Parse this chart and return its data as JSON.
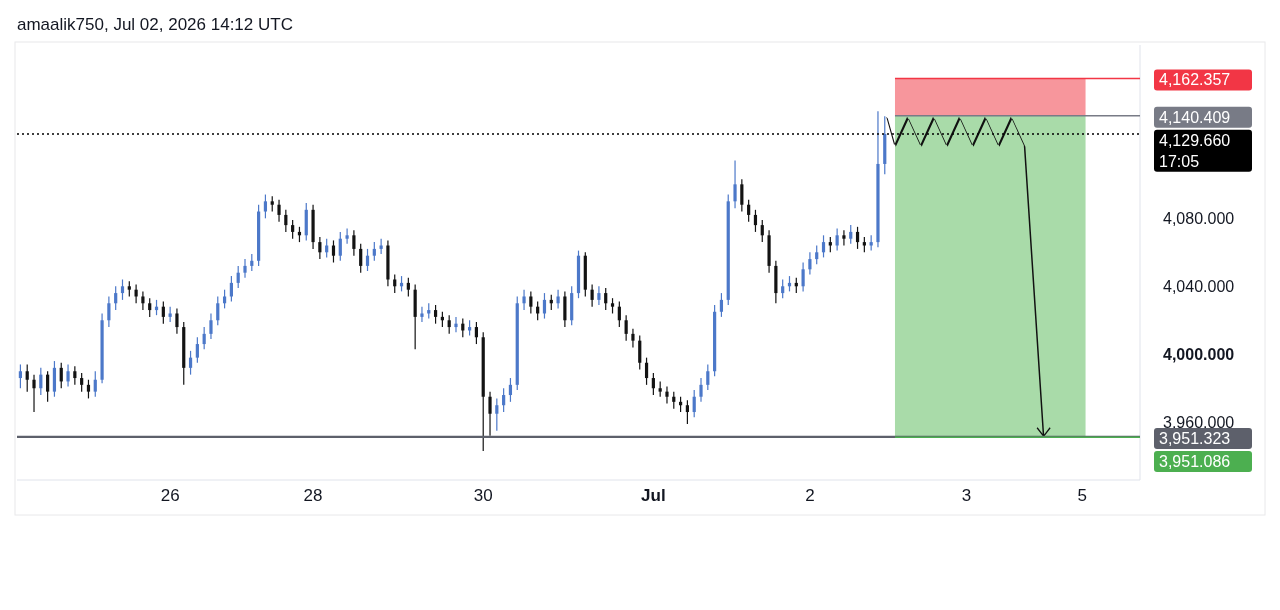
{
  "chart_data": {
    "type": "candlestick",
    "title": "amaalik750, Jul 02, 2026 14:12 UTC",
    "categories": [
      null,
      null,
      null,
      null,
      null,
      null,
      null,
      null,
      null,
      null,
      null,
      null,
      null,
      null,
      null,
      null,
      null,
      null,
      null,
      null,
      null,
      null,
      "26",
      null,
      null,
      null,
      null,
      null,
      null,
      null,
      null,
      null,
      null,
      null,
      null,
      null,
      null,
      null,
      null,
      null,
      null,
      null,
      null,
      "28",
      null,
      null,
      null,
      null,
      null,
      null,
      null,
      null,
      null,
      null,
      null,
      null,
      null,
      null,
      null,
      null,
      null,
      null,
      null,
      null,
      null,
      null,
      null,
      null,
      "30",
      null,
      null,
      null,
      null,
      null,
      null,
      null,
      null,
      null,
      null,
      null,
      null,
      null,
      null,
      null,
      null,
      null,
      null,
      null,
      null,
      null,
      null,
      null,
      null,
      "Jul",
      null,
      null,
      null,
      null,
      null,
      null,
      null,
      null,
      null,
      null,
      null,
      null,
      null,
      null,
      null,
      null,
      null,
      null,
      null,
      null,
      null,
      null,
      "2",
      null,
      null,
      null,
      null,
      null,
      null,
      null,
      null,
      null,
      null,
      null,
      null,
      null,
      null,
      null,
      null,
      null,
      null,
      null,
      null,
      null,
      null,
      "3",
      null,
      null,
      null,
      null,
      null,
      null,
      null,
      null,
      null,
      null,
      null,
      null,
      null,
      null,
      null,
      null,
      "5",
      null,
      null,
      null,
      null,
      null,
      null,
      null,
      null
    ],
    "ohlc": [
      [
        3986,
        3994,
        3980,
        3990
      ],
      [
        3990,
        3994,
        3978,
        3985
      ],
      [
        3985,
        3988,
        3966,
        3980
      ],
      [
        3980,
        3992,
        3976,
        3988
      ],
      [
        3988,
        3990,
        3972,
        3978
      ],
      [
        3978,
        3996,
        3975,
        3992
      ],
      [
        3992,
        3995,
        3980,
        3984
      ],
      [
        3984,
        3994,
        3981,
        3990
      ],
      [
        3990,
        3993,
        3982,
        3986
      ],
      [
        3986,
        3989,
        3978,
        3982
      ],
      [
        3982,
        3985,
        3974,
        3978
      ],
      [
        3978,
        3990,
        3975,
        3985
      ],
      [
        3985,
        4024,
        3983,
        4020
      ],
      [
        4020,
        4034,
        4016,
        4030
      ],
      [
        4030,
        4040,
        4026,
        4036
      ],
      [
        4036,
        4044,
        4032,
        4040
      ],
      [
        4040,
        4043,
        4034,
        4038
      ],
      [
        4038,
        4041,
        4030,
        4034
      ],
      [
        4034,
        4037,
        4026,
        4030
      ],
      [
        4030,
        4033,
        4022,
        4026
      ],
      [
        4026,
        4032,
        4023,
        4028
      ],
      [
        4028,
        4031,
        4018,
        4022
      ],
      [
        4022,
        4028,
        4019,
        4024
      ],
      [
        4024,
        4027,
        4012,
        4016
      ],
      [
        4016,
        4019,
        3982,
        3992
      ],
      [
        3992,
        4002,
        3988,
        3998
      ],
      [
        3998,
        4010,
        3995,
        4006
      ],
      [
        4006,
        4016,
        4003,
        4012
      ],
      [
        4012,
        4024,
        4009,
        4020
      ],
      [
        4020,
        4034,
        4017,
        4030
      ],
      [
        4030,
        4038,
        4027,
        4034
      ],
      [
        4034,
        4046,
        4031,
        4042
      ],
      [
        4042,
        4052,
        4039,
        4048
      ],
      [
        4048,
        4056,
        4045,
        4052
      ],
      [
        4052,
        4059,
        4049,
        4055
      ],
      [
        4055,
        4088,
        4052,
        4084
      ],
      [
        4084,
        4094,
        4080,
        4090
      ],
      [
        4090,
        4093,
        4084,
        4088
      ],
      [
        4088,
        4091,
        4078,
        4082
      ],
      [
        4082,
        4085,
        4072,
        4076
      ],
      [
        4076,
        4079,
        4068,
        4072
      ],
      [
        4072,
        4075,
        4066,
        4070
      ],
      [
        4070,
        4089,
        4067,
        4085
      ],
      [
        4085,
        4088,
        4062,
        4066
      ],
      [
        4066,
        4069,
        4056,
        4060
      ],
      [
        4060,
        4068,
        4057,
        4064
      ],
      [
        4064,
        4067,
        4054,
        4058
      ],
      [
        4058,
        4072,
        4055,
        4068
      ],
      [
        4068,
        4074,
        4065,
        4070
      ],
      [
        4070,
        4073,
        4058,
        4062
      ],
      [
        4062,
        4065,
        4048,
        4052
      ],
      [
        4052,
        4062,
        4049,
        4058
      ],
      [
        4058,
        4066,
        4055,
        4062
      ],
      [
        4062,
        4068,
        4059,
        4064
      ],
      [
        4064,
        4067,
        4040,
        4044
      ],
      [
        4044,
        4047,
        4036,
        4040
      ],
      [
        4040,
        4046,
        4037,
        4042
      ],
      [
        4042,
        4045,
        4034,
        4038
      ],
      [
        4038,
        4041,
        4003,
        4022
      ],
      [
        4022,
        4028,
        4019,
        4024
      ],
      [
        4024,
        4030,
        4021,
        4026
      ],
      [
        4026,
        4029,
        4018,
        4022
      ],
      [
        4022,
        4025,
        4016,
        4020
      ],
      [
        4020,
        4023,
        4012,
        4016
      ],
      [
        4016,
        4022,
        4013,
        4018
      ],
      [
        4018,
        4021,
        4010,
        4014
      ],
      [
        4014,
        4020,
        4011,
        4016
      ],
      [
        4016,
        4019,
        4006,
        4010
      ],
      [
        4010,
        4013,
        3943,
        3975
      ],
      [
        3975,
        3978,
        3952,
        3965
      ],
      [
        3965,
        3974,
        3955,
        3970
      ],
      [
        3970,
        3980,
        3966,
        3976
      ],
      [
        3976,
        3986,
        3972,
        3982
      ],
      [
        3982,
        4034,
        3979,
        4030
      ],
      [
        4030,
        4038,
        4026,
        4034
      ],
      [
        4034,
        4037,
        4024,
        4028
      ],
      [
        4028,
        4031,
        4020,
        4024
      ],
      [
        4024,
        4036,
        4021,
        4032
      ],
      [
        4032,
        4035,
        4026,
        4030
      ],
      [
        4030,
        4038,
        4027,
        4034
      ],
      [
        4034,
        4037,
        4016,
        4020
      ],
      [
        4020,
        4040,
        4017,
        4036
      ],
      [
        4036,
        4061,
        4033,
        4058
      ],
      [
        4058,
        4060,
        4034,
        4038
      ],
      [
        4038,
        4041,
        4028,
        4032
      ],
      [
        4032,
        4040,
        4029,
        4036
      ],
      [
        4036,
        4039,
        4026,
        4030
      ],
      [
        4030,
        4033,
        4024,
        4028
      ],
      [
        4028,
        4031,
        4016,
        4020
      ],
      [
        4020,
        4023,
        4008,
        4012
      ],
      [
        4012,
        4015,
        4004,
        4008
      ],
      [
        4008,
        4011,
        3991,
        3995
      ],
      [
        3995,
        3998,
        3982,
        3986
      ],
      [
        3986,
        3989,
        3976,
        3980
      ],
      [
        3980,
        3984,
        3975,
        3978
      ],
      [
        3978,
        3981,
        3971,
        3975
      ],
      [
        3975,
        3978,
        3968,
        3972
      ],
      [
        3972,
        3975,
        3966,
        3970
      ],
      [
        3970,
        3973,
        3959,
        3966
      ],
      [
        3966,
        3979,
        3963,
        3975
      ],
      [
        3975,
        3986,
        3972,
        3982
      ],
      [
        3982,
        3994,
        3979,
        3990
      ],
      [
        3990,
        4029,
        3987,
        4025
      ],
      [
        4025,
        4036,
        4022,
        4032
      ],
      [
        4032,
        4094,
        4029,
        4090
      ],
      [
        4090,
        4114,
        4086,
        4100
      ],
      [
        4100,
        4103,
        4084,
        4088
      ],
      [
        4088,
        4091,
        4078,
        4082
      ],
      [
        4082,
        4085,
        4072,
        4076
      ],
      [
        4076,
        4079,
        4066,
        4070
      ],
      [
        4070,
        4073,
        4048,
        4052
      ],
      [
        4052,
        4055,
        4030,
        4036
      ],
      [
        4036,
        4044,
        4033,
        4040
      ],
      [
        4040,
        4046,
        4037,
        4042
      ],
      [
        4042,
        4045,
        4036,
        4040
      ],
      [
        4040,
        4054,
        4037,
        4050
      ],
      [
        4050,
        4060,
        4047,
        4056
      ],
      [
        4056,
        4064,
        4053,
        4060
      ],
      [
        4060,
        4070,
        4057,
        4066
      ],
      [
        4066,
        4069,
        4060,
        4064
      ],
      [
        4064,
        4074,
        4061,
        4070
      ],
      [
        4070,
        4073,
        4064,
        4068
      ],
      [
        4068,
        4076,
        4065,
        4072
      ],
      [
        4072,
        4075,
        4062,
        4066
      ],
      [
        4066,
        4069,
        4060,
        4064
      ],
      [
        4064,
        4070,
        4061,
        4066
      ],
      [
        4066,
        4143,
        4063,
        4112
      ],
      [
        4112,
        4140,
        4106,
        4129.66
      ],
      null,
      null,
      null,
      null,
      null,
      null,
      null,
      null,
      null,
      null,
      null,
      null,
      null,
      null,
      null,
      null,
      null,
      null,
      null,
      null,
      null,
      null,
      null,
      null,
      null,
      null,
      null,
      null,
      null,
      null,
      null,
      null,
      null,
      null,
      null,
      null,
      null
    ],
    "ylim": [
      3926,
      4182
    ],
    "yticks": [
      {
        "value": 3960,
        "label": "3,960.000"
      },
      {
        "value": 4000,
        "label": "4,000.000"
      },
      {
        "value": 4040,
        "label": "4,040.000"
      },
      {
        "value": 4080,
        "label": "4,080.000"
      }
    ],
    "bands": [
      {
        "axis": "y",
        "from": 4140.409,
        "to": 4162.357,
        "color": "#f7969c"
      },
      {
        "axis": "y",
        "from": 3951.086,
        "to": 4140.409,
        "color": "#a9dba9"
      }
    ],
    "ref_lines": [
      {
        "axis": "y",
        "value": 4162.357,
        "label": "4,162.357",
        "color": "#f23645"
      },
      {
        "axis": "y",
        "value": 4140.409,
        "label": "4,140.409",
        "color": "#787b86"
      },
      {
        "axis": "y",
        "value": 4129.66,
        "label": "4,129.660\n17:05",
        "color": "#000000",
        "line_style": "dotted"
      },
      {
        "axis": "y",
        "value": 3951.323,
        "label": "3,951.323",
        "color": "#5d606b",
        "line_style": "solid"
      },
      {
        "axis": "y",
        "value": 3951.086,
        "label": "3,951.086",
        "color": "#4caf50"
      }
    ]
  }
}
